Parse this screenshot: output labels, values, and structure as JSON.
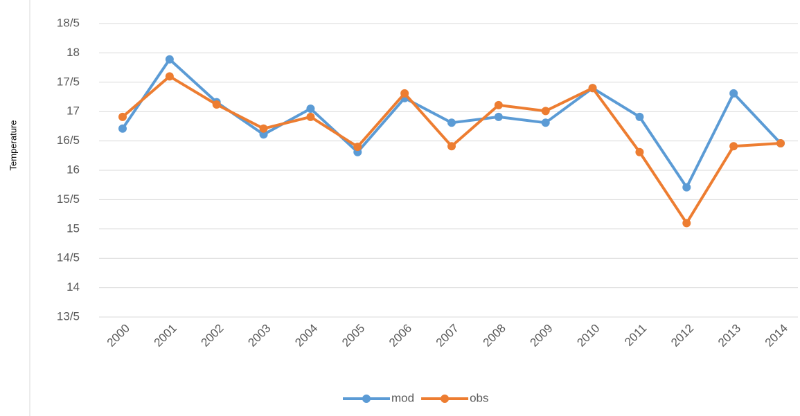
{
  "chart_data": {
    "type": "line",
    "y_label": "Temperature",
    "categories": [
      "2000",
      "2001",
      "2002",
      "2003",
      "2004",
      "2005",
      "2006",
      "2007",
      "2008",
      "2009",
      "2010",
      "2011",
      "2012",
      "2013",
      "2014"
    ],
    "series": [
      {
        "name": "mod",
        "color": "#5b9bd5",
        "values": [
          16.71,
          17.89,
          17.16,
          16.61,
          17.05,
          16.31,
          17.23,
          16.81,
          16.91,
          16.81,
          17.4,
          16.91,
          15.71,
          17.31,
          16.46
        ]
      },
      {
        "name": "obs",
        "color": "#ed7d31",
        "values": [
          16.91,
          17.6,
          17.12,
          16.71,
          16.91,
          16.4,
          17.31,
          16.41,
          17.11,
          17.01,
          17.4,
          16.31,
          15.1,
          16.41,
          16.46
        ]
      }
    ],
    "ylim": [
      13.5,
      18.5
    ],
    "yticks": [
      {
        "value": 13.5,
        "label": "13/5"
      },
      14,
      {
        "value": 14.5,
        "label": "14/5"
      },
      15,
      {
        "value": 15.5,
        "label": "15/5"
      },
      16,
      {
        "value": 16.5,
        "label": "16/5"
      },
      17,
      {
        "value": 17.5,
        "label": "17/5"
      },
      18,
      {
        "value": 18.5,
        "label": "18/5"
      }
    ],
    "grid": true,
    "legend": "bottom"
  }
}
